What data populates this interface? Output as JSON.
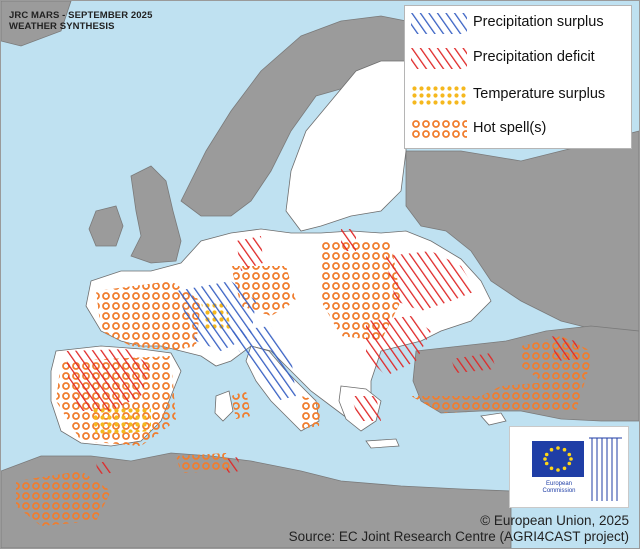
{
  "map": {
    "title_line1": "JRC MARS - SEPTEMBER 2025",
    "title_line2": "WEATHER SYNTHESIS",
    "colors": {
      "sea": "#bfe1f1",
      "eu_land": "#ffffff",
      "non_eu_land": "#9b9b9b",
      "border": "#6e6e6e",
      "precip_surplus": "#3a62c4",
      "precip_deficit": "#e02828",
      "temp_surplus": "#f5b81e",
      "hot_spell": "#f07d2e"
    }
  },
  "legend": {
    "items": [
      {
        "label": "Precipitation surplus",
        "pattern": "precip-surplus"
      },
      {
        "label": "Precipitation deficit",
        "pattern": "precip-deficit"
      },
      {
        "label": "Temperature surplus",
        "pattern": "temp-surplus"
      },
      {
        "label": "Hot spell(s)",
        "pattern": "hot-spell"
      }
    ]
  },
  "logo": {
    "line1": "European",
    "line2": "Commission"
  },
  "credits": {
    "copyright": "© European Union, 2025",
    "source": "Source: EC Joint Research Centre (AGRI4CAST project)"
  }
}
